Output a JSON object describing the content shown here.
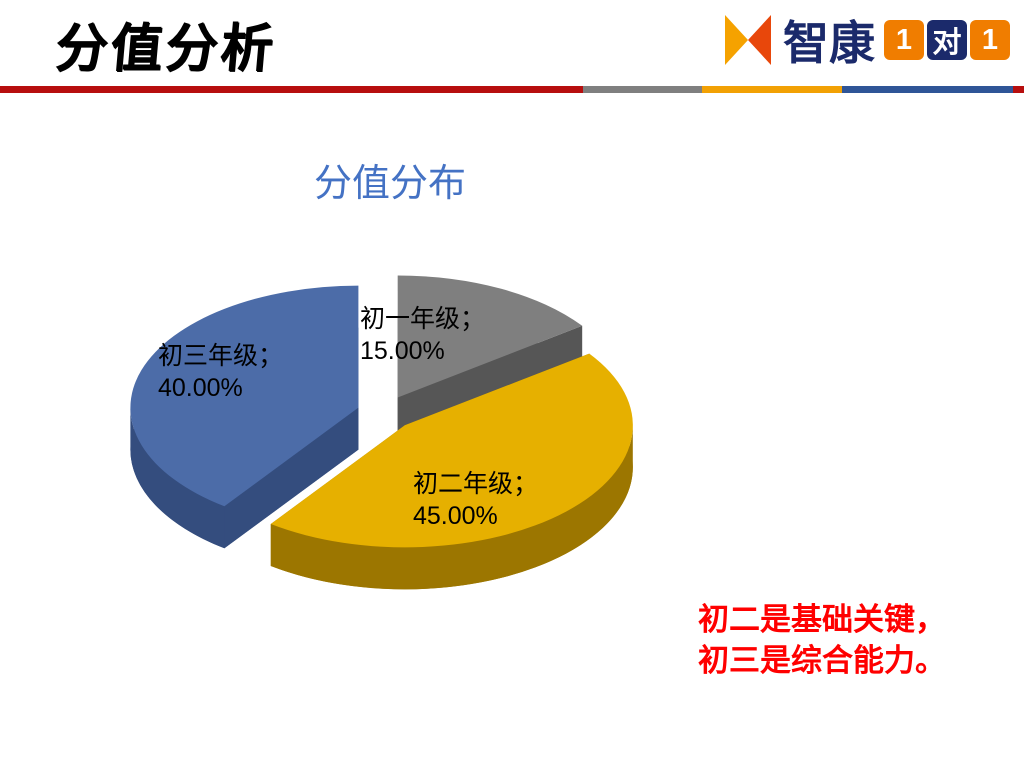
{
  "header": {
    "title": "分值分析",
    "logo": {
      "brand": "智康",
      "one_a": "1",
      "dui": "对",
      "one_b": "1"
    },
    "divider_colors": {
      "red": "#B70E0E",
      "gray": "#7F7F7F",
      "orange": "#F2A104",
      "blue": "#2F5597"
    }
  },
  "chart_data": {
    "type": "pie",
    "style": "3d-exploded",
    "title": "分值分布",
    "labels": [
      "初一年级",
      "初二年级",
      "初三年级"
    ],
    "values": [
      15.0,
      45.0,
      40.0
    ],
    "legend_position": "none",
    "slices": [
      {
        "label": "初一年级",
        "value": 15,
        "display_name": "初一年级；",
        "display_pct": "15.00%",
        "color": "#7F7F7F",
        "dark": "#565656"
      },
      {
        "label": "初二年级",
        "value": 45,
        "display_name": "初二年级；",
        "display_pct": "45.00%",
        "color": "#E6B000",
        "dark": "#9C7600"
      },
      {
        "label": "初三年级",
        "value": 40,
        "display_name": "初三年级；",
        "display_pct": "40.00%",
        "color": "#4C6CA8",
        "dark": "#344D7E"
      }
    ]
  },
  "note": {
    "line1": "初二是基础关键，",
    "line2": "初三是综合能力。",
    "color": "#FF0000"
  }
}
